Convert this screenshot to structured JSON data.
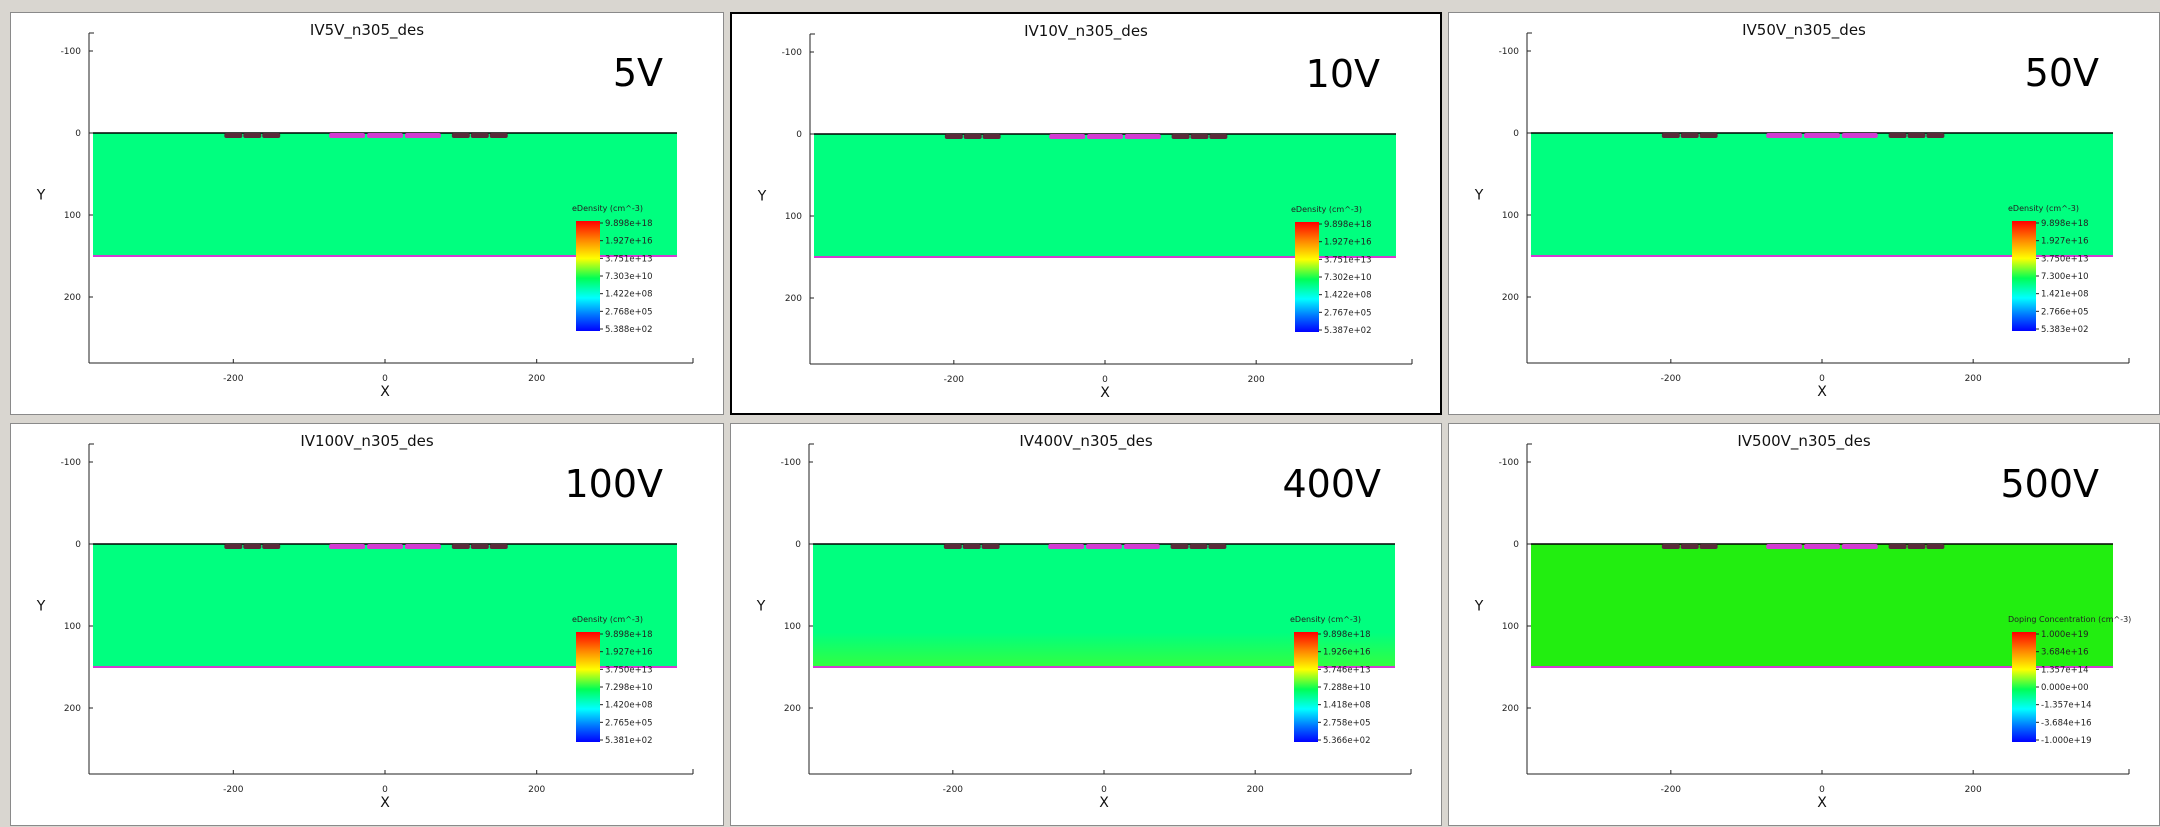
{
  "panels": [
    {
      "title": "IV5V_n305_des",
      "voltage_label": "5V",
      "selected": false,
      "field_color": "#00ff7f",
      "colorbar_title": "eDensity (cm^-3)",
      "colorbar_ticks": [
        "9.898e+18",
        "1.927e+16",
        "3.751e+13",
        "7.303e+10",
        "1.422e+08",
        "2.768e+05",
        "5.388e+02"
      ],
      "x_ticks": [
        "-200",
        "0",
        "200"
      ],
      "y_ticks": [
        "-100",
        "0",
        "100",
        "200"
      ],
      "x_label": "X",
      "y_label": "Y"
    },
    {
      "title": "IV10V_n305_des",
      "voltage_label": "10V",
      "selected": true,
      "field_color": "#00ff7f",
      "colorbar_title": "eDensity (cm^-3)",
      "colorbar_ticks": [
        "9.898e+18",
        "1.927e+16",
        "3.751e+13",
        "7.302e+10",
        "1.422e+08",
        "2.767e+05",
        "5.387e+02"
      ],
      "x_ticks": [
        "-200",
        "0",
        "200"
      ],
      "y_ticks": [
        "-100",
        "0",
        "100",
        "200"
      ],
      "x_label": "X",
      "y_label": "Y"
    },
    {
      "title": "IV50V_n305_des",
      "voltage_label": "50V",
      "selected": false,
      "field_color": "#00ff7f",
      "colorbar_title": "eDensity (cm^-3)",
      "colorbar_ticks": [
        "9.898e+18",
        "1.927e+16",
        "3.750e+13",
        "7.300e+10",
        "1.421e+08",
        "2.766e+05",
        "5.383e+02"
      ],
      "x_ticks": [
        "-200",
        "0",
        "200"
      ],
      "y_ticks": [
        "-100",
        "0",
        "100",
        "200"
      ],
      "x_label": "X",
      "y_label": "Y"
    },
    {
      "title": "IV100V_n305_des",
      "voltage_label": "100V",
      "selected": false,
      "field_color": "#00ff7f",
      "colorbar_title": "eDensity (cm^-3)",
      "colorbar_ticks": [
        "9.898e+18",
        "1.927e+16",
        "3.750e+13",
        "7.298e+10",
        "1.420e+08",
        "2.765e+05",
        "5.381e+02"
      ],
      "x_ticks": [
        "-200",
        "0",
        "200"
      ],
      "y_ticks": [
        "-100",
        "0",
        "100",
        "200"
      ],
      "x_label": "X",
      "y_label": "Y"
    },
    {
      "title": "IV400V_n305_des",
      "voltage_label": "400V",
      "selected": false,
      "field_color": "#00ff7f",
      "field_bottom_color": "#33ff40",
      "colorbar_title": "eDensity (cm^-3)",
      "colorbar_ticks": [
        "9.898e+18",
        "1.926e+16",
        "3.746e+13",
        "7.288e+10",
        "1.418e+08",
        "2.758e+05",
        "5.366e+02"
      ],
      "x_ticks": [
        "-200",
        "0",
        "200"
      ],
      "y_ticks": [
        "-100",
        "0",
        "100",
        "200"
      ],
      "x_label": "X",
      "y_label": "Y"
    },
    {
      "title": "IV500V_n305_des",
      "voltage_label": "500V",
      "selected": false,
      "field_color": "#22ee10",
      "colorbar_title": "Doping Concentration (cm^-3)",
      "colorbar_ticks": [
        "1.000e+19",
        "3.684e+16",
        "1.357e+14",
        "0.000e+00",
        "-1.357e+14",
        "-3.684e+16",
        "-1.000e+19"
      ],
      "x_ticks": [
        "-200",
        "0",
        "200"
      ],
      "y_ticks": [
        "-100",
        "0",
        "100",
        "200"
      ],
      "x_label": "X",
      "y_label": "Y"
    }
  ]
}
